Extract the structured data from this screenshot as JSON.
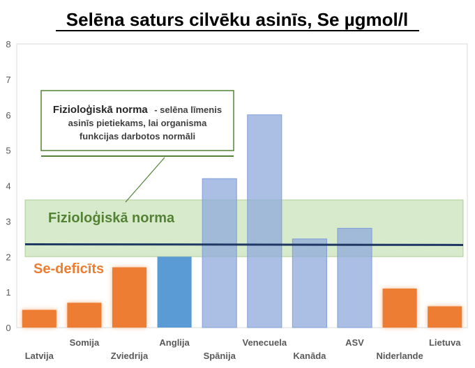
{
  "chart_data": {
    "type": "bar",
    "title": "Selēna saturs cilvēku asinīs, Se µgmol/l",
    "categories": [
      "Latvija",
      "Somija",
      "Zviedrija",
      "Anglija",
      "Spānija",
      "Venecuela",
      "Kanāda",
      "ASV",
      "Niderlande",
      "Lietuva"
    ],
    "values": [
      0.5,
      0.7,
      1.7,
      2.0,
      4.2,
      6.0,
      2.5,
      2.8,
      1.1,
      0.6
    ],
    "bar_colors": [
      "#ED7D31",
      "#ED7D31",
      "#ED7D31",
      "#5B9BD5",
      "#8FAADC",
      "#8FAADC",
      "#8FAADC",
      "#8FAADC",
      "#ED7D31",
      "#ED7D31"
    ],
    "deficit_bars": [
      0,
      1,
      2,
      8,
      9
    ],
    "ylim": [
      0,
      8
    ],
    "yticks": [
      0,
      1,
      2,
      3,
      4,
      5,
      6,
      7,
      8
    ],
    "grid": false,
    "legend": "none",
    "norm_band": {
      "low": 2.0,
      "high": 3.6,
      "color": "#A9D18E",
      "label": "Fizioloģiskā norma"
    },
    "norm_line": {
      "y_start": 2.35,
      "y_end": 2.33,
      "color": "#1F3864"
    },
    "deficit_label": "Se-deficīts",
    "callout": {
      "title": "Fizioloģiskā norma",
      "lines": [
        "- selēna līmenis",
        "asinīs pietiekams, lai organisma",
        "funkcijas darbotos normāli"
      ]
    }
  }
}
